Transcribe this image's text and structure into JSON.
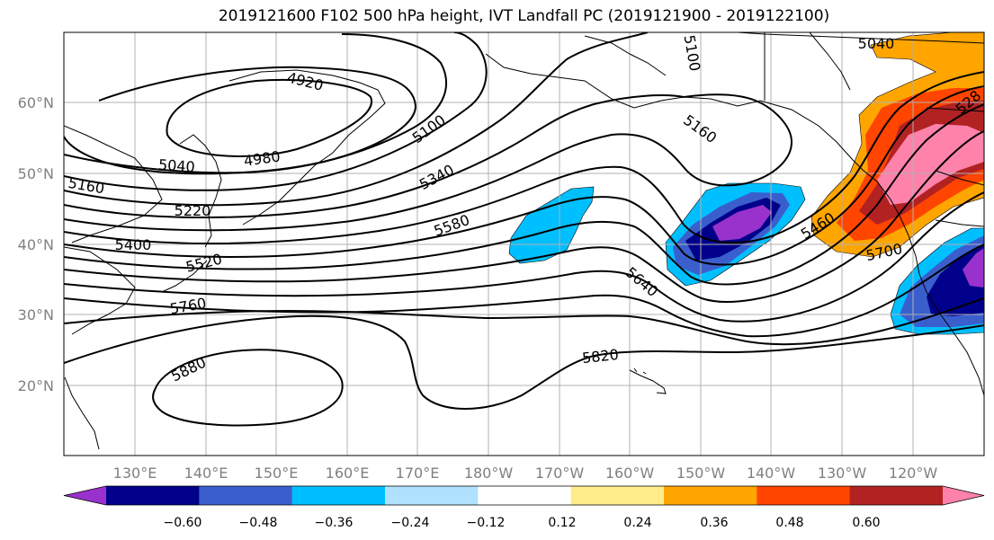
{
  "title": "2019121600 F102 500 hPa height, IVT Landfall PC (2019121900 - 2019122100)",
  "map": {
    "lat_labels": [
      "60°N",
      "50°N",
      "40°N",
      "30°N",
      "20°N"
    ],
    "lon_labels": [
      "130°E",
      "140°E",
      "150°E",
      "160°E",
      "170°E",
      "180°W",
      "170°W",
      "160°W",
      "150°W",
      "140°W",
      "130°W",
      "120°W"
    ],
    "height_contour_labels": [
      "4920",
      "4980",
      "5040",
      "5040",
      "5100",
      "5100",
      "5160",
      "5160",
      "5220",
      "5340",
      "5400",
      "5460",
      "5520",
      "5580",
      "5640",
      "5700",
      "5760",
      "5820",
      "5880",
      "528"
    ]
  },
  "colorbar": {
    "colors": [
      "#9932cc",
      "#00008b",
      "#3a5fcd",
      "#00bfff",
      "#b0e2ff",
      "#ffffff",
      "#ffec8b",
      "#ffa500",
      "#ff4500",
      "#b22222",
      "#ff82ab"
    ],
    "tick_labels": [
      "−0.60",
      "−0.48",
      "−0.36",
      "−0.24",
      "−0.12",
      "0.12",
      "0.24",
      "0.36",
      "0.48",
      "0.60"
    ]
  }
}
